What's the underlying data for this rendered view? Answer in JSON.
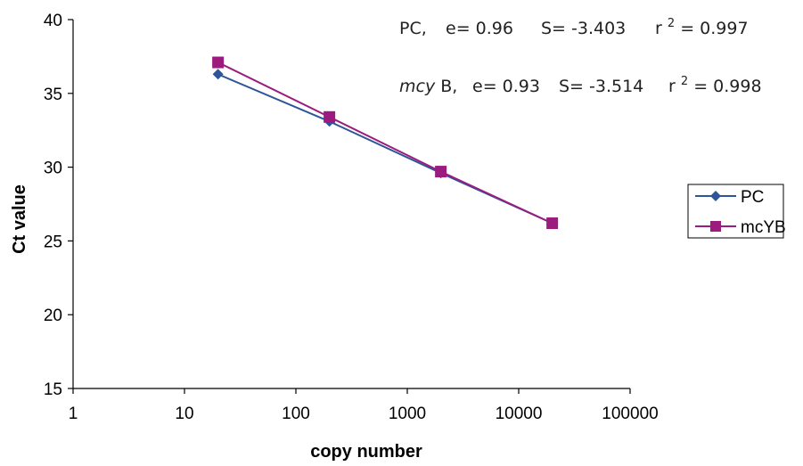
{
  "chart_data": {
    "type": "line",
    "x_scale": "log",
    "x": [
      20,
      200,
      2000,
      20000
    ],
    "xlim": [
      1,
      100000
    ],
    "ylim": [
      15,
      40
    ],
    "xticks": [
      "1",
      "10",
      "100",
      "1000",
      "10000",
      "100000"
    ],
    "yticks": [
      "15",
      "20",
      "25",
      "30",
      "35",
      "40"
    ],
    "xlabel": "copy number",
    "ylabel": "Ct value",
    "grid": false,
    "legend_position": "right",
    "series": [
      {
        "name": "PC",
        "values": [
          36.3,
          33.1,
          29.6,
          26.2
        ],
        "color": "#2e5597",
        "marker": "diamond"
      },
      {
        "name": "mcYB",
        "values": [
          37.1,
          33.4,
          29.7,
          26.2
        ],
        "color": "#9b1b7e",
        "marker": "square"
      }
    ],
    "annotations": {
      "pc": {
        "name": "PC,",
        "e": "e= 0.96",
        "s": "S= -3.403",
        "r_base": "r",
        "r_sup": "2",
        "r_val": "= 0.997"
      },
      "mcy": {
        "name_italic": "mcy",
        "name_rest": "B,",
        "e": "e= 0.93",
        "s": "S= -3.514",
        "r_base": "r",
        "r_sup": "2",
        "r_val": "= 0.998"
      }
    }
  }
}
